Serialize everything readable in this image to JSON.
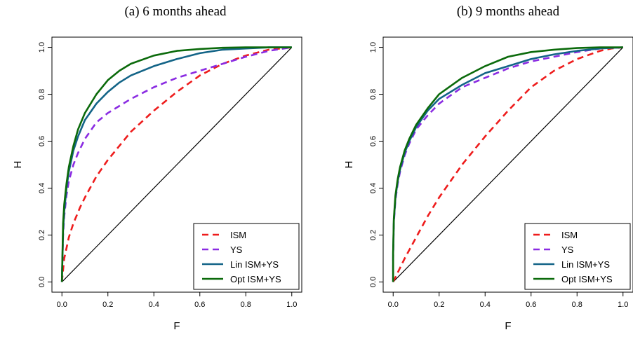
{
  "chart_data": [
    {
      "type": "line",
      "title": "(a)  6 months ahead",
      "xlabel": "F",
      "ylabel": "H",
      "xlim": [
        0,
        1
      ],
      "ylim": [
        0,
        1
      ],
      "xticks": [
        "0.0",
        "0.2",
        "0.4",
        "0.6",
        "0.8",
        "1.0"
      ],
      "yticks": [
        "0.0",
        "0.2",
        "0.4",
        "0.6",
        "0.8",
        "1.0"
      ],
      "legend_position": "bottom-right",
      "diagonal": true,
      "series": [
        {
          "name": "ISM",
          "color": "#ee1c1c",
          "dash": "dashed",
          "x": [
            0,
            0.01,
            0.03,
            0.05,
            0.08,
            0.1,
            0.15,
            0.2,
            0.25,
            0.3,
            0.4,
            0.5,
            0.6,
            0.7,
            0.8,
            0.9,
            1.0
          ],
          "y": [
            0,
            0.1,
            0.19,
            0.25,
            0.32,
            0.36,
            0.45,
            0.52,
            0.58,
            0.64,
            0.73,
            0.81,
            0.88,
            0.93,
            0.965,
            0.99,
            1.0
          ]
        },
        {
          "name": "YS",
          "color": "#8a2be2",
          "dash": "dashed",
          "x": [
            0,
            0.005,
            0.01,
            0.02,
            0.03,
            0.05,
            0.07,
            0.1,
            0.15,
            0.2,
            0.3,
            0.4,
            0.5,
            0.6,
            0.7,
            0.8,
            0.9,
            1.0
          ],
          "y": [
            0,
            0.2,
            0.28,
            0.37,
            0.43,
            0.5,
            0.55,
            0.61,
            0.68,
            0.72,
            0.78,
            0.83,
            0.87,
            0.9,
            0.93,
            0.96,
            0.985,
            1.0
          ]
        },
        {
          "name": "Lin ISM+YS",
          "color": "#136487",
          "dash": "solid",
          "x": [
            0,
            0.005,
            0.01,
            0.02,
            0.03,
            0.05,
            0.07,
            0.1,
            0.15,
            0.2,
            0.25,
            0.3,
            0.4,
            0.5,
            0.6,
            0.7,
            0.8,
            0.9,
            1.0
          ],
          "y": [
            0,
            0.22,
            0.3,
            0.4,
            0.47,
            0.56,
            0.62,
            0.69,
            0.76,
            0.81,
            0.85,
            0.88,
            0.92,
            0.95,
            0.975,
            0.99,
            0.995,
            1.0,
            1.0
          ]
        },
        {
          "name": "Opt ISM+YS",
          "color": "#0b6a0b",
          "dash": "solid",
          "x": [
            0,
            0.005,
            0.01,
            0.02,
            0.03,
            0.05,
            0.07,
            0.1,
            0.15,
            0.2,
            0.25,
            0.3,
            0.4,
            0.5,
            0.6,
            0.7,
            0.8,
            0.9,
            1.0
          ],
          "y": [
            0,
            0.25,
            0.33,
            0.42,
            0.49,
            0.58,
            0.65,
            0.72,
            0.8,
            0.86,
            0.9,
            0.93,
            0.965,
            0.985,
            0.993,
            0.998,
            1.0,
            1.0,
            1.0
          ]
        }
      ]
    },
    {
      "type": "line",
      "title": "(b)  9 months ahead",
      "xlabel": "F",
      "ylabel": "H",
      "xlim": [
        0,
        1
      ],
      "ylim": [
        0,
        1
      ],
      "xticks": [
        "0.0",
        "0.2",
        "0.4",
        "0.6",
        "0.8",
        "1.0"
      ],
      "yticks": [
        "0.0",
        "0.2",
        "0.4",
        "0.6",
        "0.8",
        "1.0"
      ],
      "legend_position": "bottom-right",
      "diagonal": true,
      "series": [
        {
          "name": "ISM",
          "color": "#ee1c1c",
          "dash": "dashed",
          "x": [
            0,
            0.02,
            0.05,
            0.1,
            0.15,
            0.2,
            0.3,
            0.4,
            0.5,
            0.6,
            0.7,
            0.8,
            0.9,
            0.95,
            1.0
          ],
          "y": [
            0,
            0.04,
            0.1,
            0.19,
            0.28,
            0.36,
            0.5,
            0.62,
            0.73,
            0.83,
            0.9,
            0.95,
            0.985,
            0.995,
            1.0
          ]
        },
        {
          "name": "YS",
          "color": "#8a2be2",
          "dash": "dashed",
          "x": [
            0,
            0.0,
            0.003,
            0.01,
            0.02,
            0.03,
            0.05,
            0.07,
            0.1,
            0.15,
            0.2,
            0.3,
            0.4,
            0.5,
            0.6,
            0.7,
            0.8,
            0.9,
            1.0
          ],
          "y": [
            0,
            0.1,
            0.25,
            0.35,
            0.42,
            0.47,
            0.54,
            0.59,
            0.65,
            0.71,
            0.76,
            0.83,
            0.87,
            0.91,
            0.94,
            0.96,
            0.98,
            0.995,
            1.0
          ]
        },
        {
          "name": "Lin ISM+YS",
          "color": "#136487",
          "dash": "solid",
          "x": [
            0,
            0.0,
            0.003,
            0.01,
            0.02,
            0.03,
            0.05,
            0.07,
            0.1,
            0.15,
            0.2,
            0.3,
            0.4,
            0.5,
            0.6,
            0.7,
            0.8,
            0.9,
            1.0
          ],
          "y": [
            0,
            0.12,
            0.26,
            0.36,
            0.43,
            0.48,
            0.55,
            0.6,
            0.66,
            0.73,
            0.78,
            0.84,
            0.89,
            0.92,
            0.95,
            0.97,
            0.985,
            0.995,
            1.0
          ]
        },
        {
          "name": "Opt ISM+YS",
          "color": "#0b6a0b",
          "dash": "solid",
          "x": [
            0,
            0.0,
            0.003,
            0.01,
            0.02,
            0.03,
            0.05,
            0.07,
            0.1,
            0.15,
            0.2,
            0.3,
            0.4,
            0.5,
            0.6,
            0.7,
            0.8,
            0.9,
            1.0
          ],
          "y": [
            0,
            0.13,
            0.27,
            0.37,
            0.44,
            0.49,
            0.56,
            0.61,
            0.67,
            0.74,
            0.8,
            0.87,
            0.92,
            0.96,
            0.98,
            0.99,
            0.997,
            1.0,
            1.0
          ]
        }
      ]
    }
  ]
}
